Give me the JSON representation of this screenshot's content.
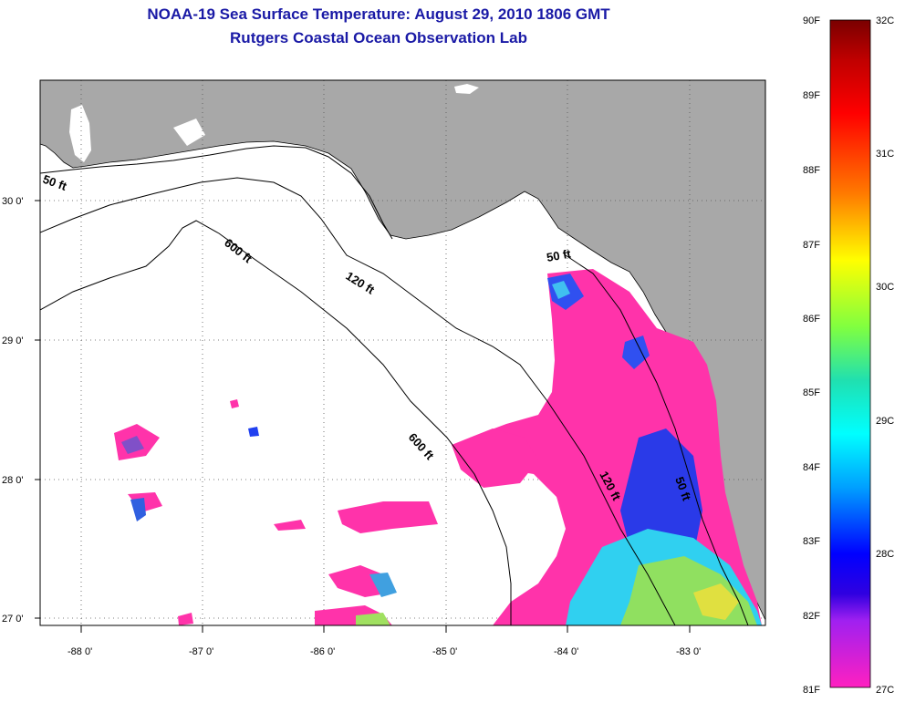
{
  "title": {
    "line1": "NOAA-19 Sea Surface Temperature:  August 29, 2010 1806 GMT",
    "line2": "Rutgers Coastal Ocean Observation Lab"
  },
  "map": {
    "lon_labels": [
      "-88 0'",
      "-87 0'",
      "-86 0'",
      "-85 0'",
      "-84 0'",
      "-83 0'"
    ],
    "lat_labels": [
      "30 0'",
      "29 0'",
      "28 0'",
      "27 0'"
    ],
    "contours": [
      {
        "id": "c50-left",
        "label": "50 ft"
      },
      {
        "id": "c600-a",
        "label": "600 ft"
      },
      {
        "id": "c120-a",
        "label": "120 ft"
      },
      {
        "id": "c50-mid",
        "label": "50 ft"
      },
      {
        "id": "c600-b",
        "label": "600 ft"
      },
      {
        "id": "c120-b",
        "label": "120 ft"
      },
      {
        "id": "c50-right",
        "label": "50 ft"
      }
    ]
  },
  "colorbar": {
    "f_labels": [
      "90F",
      "89F",
      "88F",
      "87F",
      "86F",
      "85F",
      "84F",
      "83F",
      "82F",
      "81F"
    ],
    "c_labels": [
      "32C",
      "31C",
      "30C",
      "29C",
      "28C",
      "27C"
    ],
    "colors": {
      "land": "#a8a8a8",
      "pink": "#ff33aa",
      "purple": "#8030e0",
      "blue": "#2040f0",
      "cyan": "#20e0f0",
      "green": "#80f060",
      "yellow": "#f0f020",
      "red": "#ff0000",
      "darkred": "#8b0000"
    }
  }
}
